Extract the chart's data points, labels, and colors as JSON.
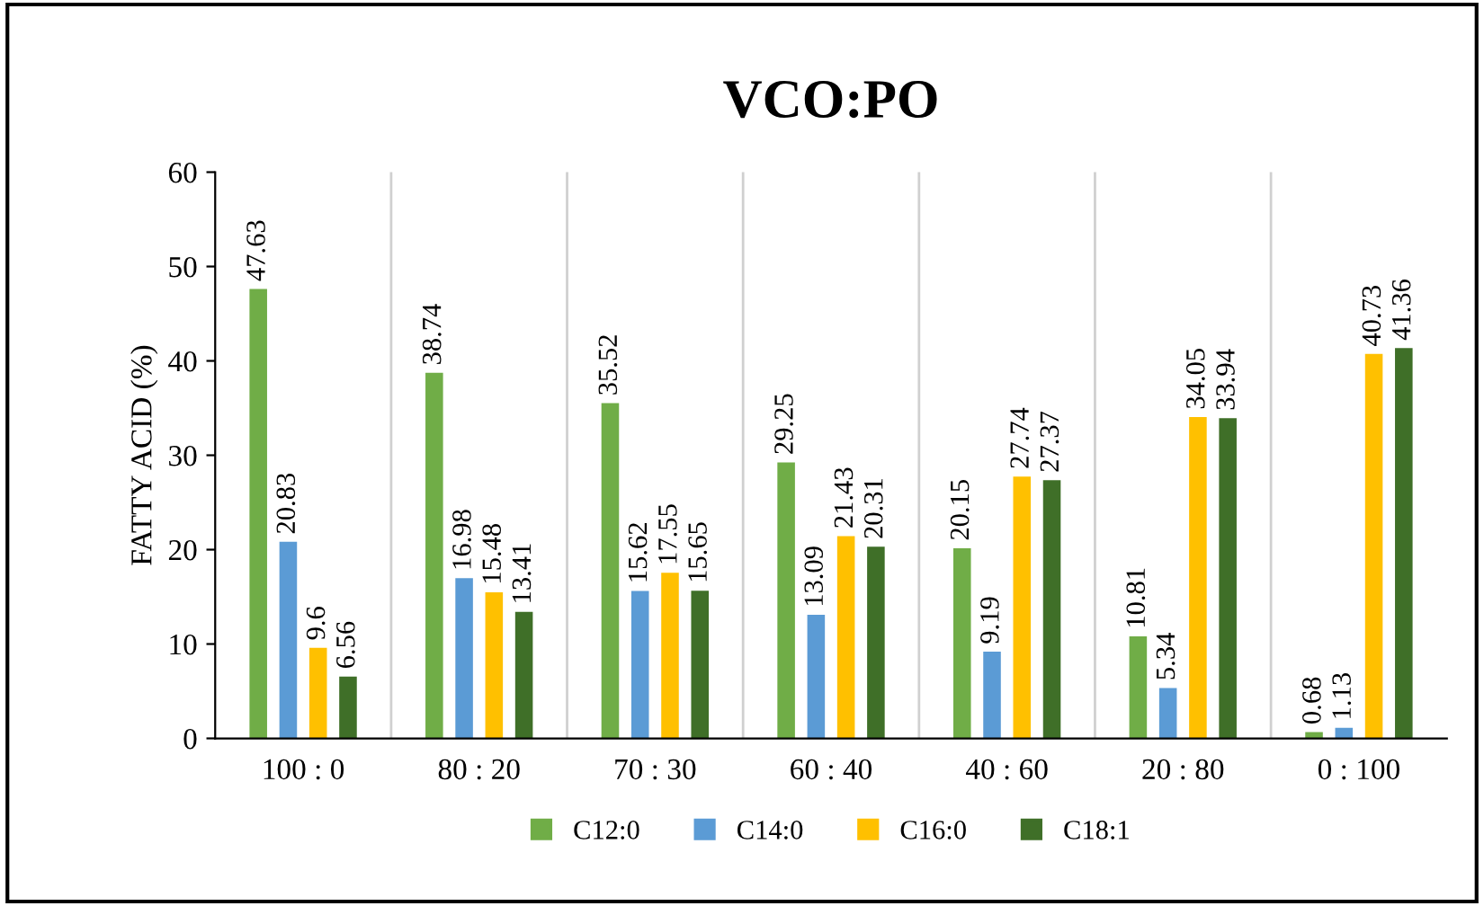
{
  "chart_data": {
    "type": "bar",
    "title": "VCO:PO",
    "ylabel": "FATTY ACID (%)",
    "categories": [
      "100 : 0",
      "80 : 20",
      "70 : 30",
      "60 : 40",
      "40 : 60",
      "20 : 80",
      "0 : 100"
    ],
    "series": [
      {
        "name": "C12:0",
        "color": "#70ad47",
        "values": [
          47.63,
          38.74,
          35.52,
          29.25,
          20.15,
          10.81,
          0.68
        ]
      },
      {
        "name": "C14:0",
        "color": "#5b9bd5",
        "values": [
          20.83,
          16.98,
          15.62,
          13.09,
          9.19,
          5.34,
          1.13
        ]
      },
      {
        "name": "C16:0",
        "color": "#ffc000",
        "values": [
          9.6,
          15.48,
          17.55,
          21.43,
          27.74,
          34.05,
          40.73
        ]
      },
      {
        "name": "C18:1",
        "color": "#3f6f28",
        "values": [
          6.56,
          13.41,
          15.65,
          20.31,
          27.37,
          33.94,
          41.36
        ]
      }
    ],
    "ylim": [
      0,
      60
    ],
    "yticks": [
      0,
      10,
      20,
      30,
      40,
      50,
      60
    ],
    "grid": "x",
    "legend": "bottom",
    "data_labels": true
  }
}
